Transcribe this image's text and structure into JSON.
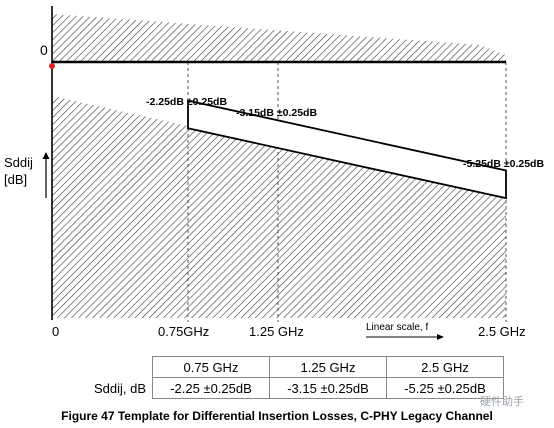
{
  "figure": {
    "y_label_line1": "Sddij",
    "y_label_line2": "[dB]",
    "y_zero_label": "0",
    "x_ticks": [
      "0",
      "0.75GHz",
      "1.25 GHz",
      "2.5 GHz"
    ],
    "x_scale_note": "Linear scale, f",
    "annotations": [
      "-2.25dB ±0.25dB",
      "-3.15dB ±0.25dB",
      "-5.25dB ±0.25dB"
    ]
  },
  "chart_data": {
    "type": "line",
    "x": [
      0.75,
      1.25,
      2.5
    ],
    "x_unit": "GHz",
    "series": [
      {
        "values": [
          -2.25,
          -3.15,
          -5.25
        ]
      }
    ],
    "tolerance_db": 0.25,
    "ylabel": "Sddij [dB]",
    "xlabel": "Linear scale, f"
  },
  "table": {
    "headers": [
      "",
      "0.75 GHz",
      "1.25 GHz",
      "2.5 GHz"
    ],
    "row_label": "Sddij, dB",
    "values": [
      "-2.25 ±0.25dB",
      "-3.15 ±0.25dB",
      "-5.25 ±0.25dB"
    ]
  },
  "caption": "Figure 47 Template for Differential Insertion Losses, C-PHY Legacy Channel",
  "watermark": "硬件助手",
  "colors": {
    "hatch": "#3a3a3a",
    "axis": "#000000",
    "dashed_grid": "#555555",
    "origin_marker": "#e02020"
  }
}
